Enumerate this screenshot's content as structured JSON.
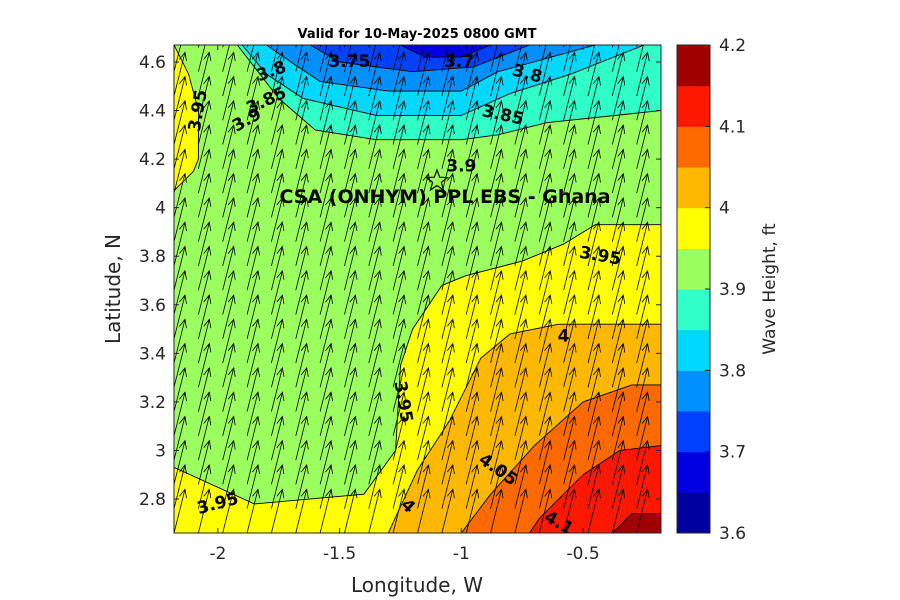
{
  "chart_data": {
    "type": "contour",
    "title": "Valid for 10-May-2025 0800 GMT",
    "xlabel": "Longitude, W",
    "ylabel": "Latitude, N",
    "xlim": [
      -2.18,
      -0.18
    ],
    "ylim": [
      2.66,
      4.67
    ],
    "xticks": [
      -2,
      -1.5,
      -1,
      -0.5
    ],
    "xtick_labels": [
      "-2",
      "-1.5",
      "-1",
      "-0.5"
    ],
    "yticks": [
      2.8,
      3,
      3.2,
      3.4,
      3.6,
      3.8,
      4,
      4.2,
      4.4,
      4.6
    ],
    "ytick_labels": [
      "2.8",
      "3",
      "3.2",
      "3.4",
      "3.6",
      "3.8",
      "4",
      "4.2",
      "4.4",
      "4.6"
    ],
    "colorbar": {
      "label": "Wave Height, ft",
      "min": 3.6,
      "max": 4.2,
      "tick_values": [
        3.6,
        3.7,
        3.8,
        3.9,
        4.0,
        4.1,
        4.2
      ],
      "tick_labels": [
        "3.6",
        "3.7",
        "3.8",
        "3.9",
        "4",
        "4.1",
        "4.2"
      ],
      "colors": [
        "#00009f",
        "#0000e0",
        "#0040ff",
        "#0090ff",
        "#00d8ff",
        "#30ffc8",
        "#9cff60",
        "#ffff00",
        "#ffb800",
        "#ff6a00",
        "#ff1800",
        "#a00000"
      ]
    },
    "regions": [
      {
        "level": 3.85,
        "color": "#30ffc8",
        "polygon": [
          [
            -2.18,
            4.67
          ],
          [
            -0.18,
            4.67
          ],
          [
            -0.18,
            4.4
          ],
          [
            -0.65,
            4.35
          ],
          [
            -0.85,
            4.3
          ],
          [
            -1.0,
            4.28
          ],
          [
            -1.35,
            4.28
          ],
          [
            -1.6,
            4.32
          ],
          [
            -1.75,
            4.45
          ],
          [
            -1.92,
            4.67
          ]
        ]
      },
      {
        "level": 3.8,
        "color": "#00d8ff",
        "polygon": [
          [
            -1.9,
            4.67
          ],
          [
            -0.25,
            4.67
          ],
          [
            -0.55,
            4.55
          ],
          [
            -0.8,
            4.47
          ],
          [
            -1.0,
            4.38
          ],
          [
            -1.35,
            4.38
          ],
          [
            -1.65,
            4.45
          ],
          [
            -1.8,
            4.55
          ]
        ]
      },
      {
        "level": 3.75,
        "color": "#0090ff",
        "polygon": [
          [
            -1.8,
            4.67
          ],
          [
            -0.45,
            4.67
          ],
          [
            -0.85,
            4.56
          ],
          [
            -1.0,
            4.48
          ],
          [
            -1.3,
            4.48
          ],
          [
            -1.58,
            4.52
          ],
          [
            -1.7,
            4.6
          ]
        ]
      },
      {
        "level": 3.7,
        "color": "#0040ff",
        "polygon": [
          [
            -1.62,
            4.67
          ],
          [
            -0.72,
            4.67
          ],
          [
            -0.95,
            4.58
          ],
          [
            -1.2,
            4.56
          ],
          [
            -1.5,
            4.6
          ]
        ]
      },
      {
        "level": 3.65,
        "color": "#0000e0",
        "polygon": [
          [
            -1.25,
            4.67
          ],
          [
            -0.88,
            4.67
          ],
          [
            -1.0,
            4.62
          ],
          [
            -1.15,
            4.62
          ]
        ]
      },
      {
        "level": 3.95,
        "color": "#ffff00",
        "polygon": [
          [
            -2.18,
            4.67
          ],
          [
            -2.18,
            4.07
          ],
          [
            -2.1,
            4.15
          ],
          [
            -2.08,
            4.2
          ],
          [
            -2.08,
            4.4
          ],
          [
            -2.12,
            4.55
          ]
        ]
      },
      {
        "level": 3.95,
        "color": "#ffff00",
        "polygon": [
          [
            -0.18,
            3.93
          ],
          [
            -0.45,
            3.93
          ],
          [
            -0.58,
            3.85
          ],
          [
            -0.75,
            3.78
          ],
          [
            -0.98,
            3.72
          ],
          [
            -1.08,
            3.68
          ],
          [
            -1.2,
            3.5
          ],
          [
            -1.25,
            3.35
          ],
          [
            -1.27,
            3.0
          ],
          [
            -1.4,
            2.82
          ],
          [
            -1.85,
            2.78
          ],
          [
            -2.18,
            2.93
          ],
          [
            -2.18,
            2.66
          ],
          [
            -0.18,
            2.66
          ]
        ]
      },
      {
        "level": 4.0,
        "color": "#ffb800",
        "polygon": [
          [
            -0.18,
            3.52
          ],
          [
            -0.6,
            3.52
          ],
          [
            -0.8,
            3.48
          ],
          [
            -0.92,
            3.38
          ],
          [
            -1.05,
            3.12
          ],
          [
            -1.18,
            2.92
          ],
          [
            -1.3,
            2.66
          ],
          [
            -0.18,
            2.66
          ]
        ]
      },
      {
        "level": 4.05,
        "color": "#ff6a00",
        "polygon": [
          [
            -0.18,
            3.27
          ],
          [
            -0.3,
            3.27
          ],
          [
            -0.5,
            3.2
          ],
          [
            -0.7,
            3.02
          ],
          [
            -0.88,
            2.82
          ],
          [
            -1.0,
            2.66
          ],
          [
            -0.18,
            2.66
          ]
        ]
      },
      {
        "level": 4.1,
        "color": "#ff1800",
        "polygon": [
          [
            -0.18,
            3.02
          ],
          [
            -0.35,
            3.0
          ],
          [
            -0.5,
            2.9
          ],
          [
            -0.68,
            2.72
          ],
          [
            -0.72,
            2.66
          ],
          [
            -0.18,
            2.66
          ]
        ]
      },
      {
        "level": 4.15,
        "color": "#a00000",
        "polygon": [
          [
            -0.18,
            2.74
          ],
          [
            -0.3,
            2.74
          ],
          [
            -0.38,
            2.66
          ],
          [
            -0.18,
            2.66
          ]
        ]
      }
    ],
    "contour_labels": [
      {
        "text": "3.75",
        "x": -1.46,
        "y": 4.6,
        "angle": 0
      },
      {
        "text": "3.7",
        "x": -1.01,
        "y": 4.6,
        "angle": 0
      },
      {
        "text": "3.8",
        "x": -1.78,
        "y": 4.56,
        "angle": 20
      },
      {
        "text": "3.8",
        "x": -0.73,
        "y": 4.55,
        "angle": -15
      },
      {
        "text": "3.85",
        "x": -1.8,
        "y": 4.44,
        "angle": 25
      },
      {
        "text": "3.85",
        "x": -0.83,
        "y": 4.38,
        "angle": -12
      },
      {
        "text": "3.9",
        "x": -1.88,
        "y": 4.36,
        "angle": 30
      },
      {
        "text": "3.9",
        "x": -1.0,
        "y": 4.17,
        "angle": 0
      },
      {
        "text": "3.95",
        "x": -2.08,
        "y": 4.4,
        "angle": 80
      },
      {
        "text": "3.95",
        "x": -0.43,
        "y": 3.8,
        "angle": -10
      },
      {
        "text": "3.95",
        "x": -1.24,
        "y": 3.2,
        "angle": -80
      },
      {
        "text": "3.95",
        "x": -2.0,
        "y": 2.78,
        "angle": 15
      },
      {
        "text": "4",
        "x": -0.58,
        "y": 3.47,
        "angle": 0
      },
      {
        "text": "4",
        "x": -1.22,
        "y": 2.77,
        "angle": -45
      },
      {
        "text": "4.05",
        "x": -0.85,
        "y": 2.92,
        "angle": -35
      },
      {
        "text": "4.1",
        "x": -0.6,
        "y": 2.7,
        "angle": -30
      }
    ],
    "site": {
      "label": "CSA (ONHYM) PPL EBS  - Ghana",
      "x": -1.1,
      "y": 4.11
    },
    "direction_vectors": {
      "x_start": -2.18,
      "x_step": 0.1,
      "y_start": 2.66,
      "y_step": 0.1,
      "dx": 0.045,
      "dy": 0.18
    }
  }
}
